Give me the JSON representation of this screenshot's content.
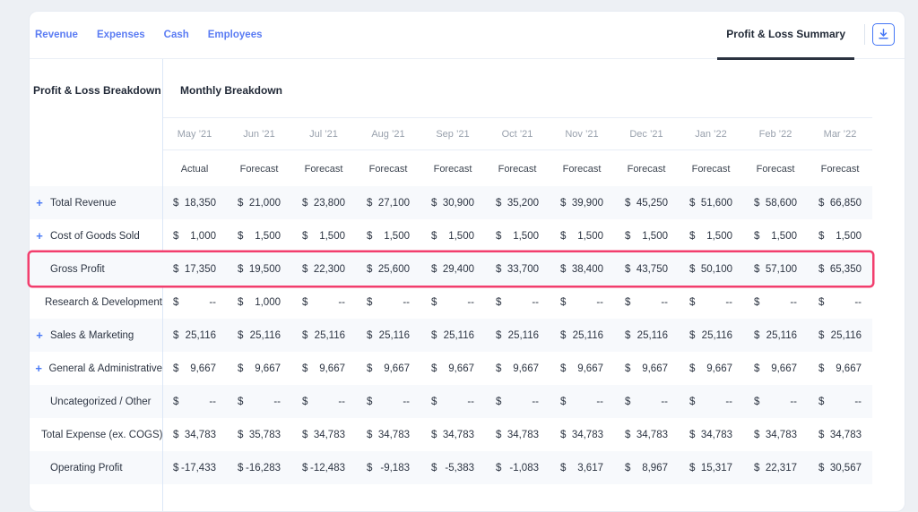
{
  "colors": {
    "page_background": "#edf0f4",
    "accent_blue": "#4b7bf5",
    "tab_blue": "#5b7cf3",
    "highlight_pink": "#f23e6d",
    "row_stripe": "#f7f9fc",
    "active_tab_underline": "#2b3240"
  },
  "tabs": [
    {
      "label": "Revenue"
    },
    {
      "label": "Expenses"
    },
    {
      "label": "Cash"
    },
    {
      "label": "Employees"
    }
  ],
  "active_view": {
    "label": "Profit & Loss Summary"
  },
  "panel": {
    "left_header": "Profit & Loss Breakdown",
    "main_header": "Monthly Breakdown"
  },
  "table": {
    "currency": "$",
    "expand_glyph": "+",
    "columns": [
      {
        "month": "May ’21",
        "period": "Actual"
      },
      {
        "month": "Jun ’21",
        "period": "Forecast"
      },
      {
        "month": "Jul ’21",
        "period": "Forecast"
      },
      {
        "month": "Aug ’21",
        "period": "Forecast"
      },
      {
        "month": "Sep ’21",
        "period": "Forecast"
      },
      {
        "month": "Oct ’21",
        "period": "Forecast"
      },
      {
        "month": "Nov ’21",
        "period": "Forecast"
      },
      {
        "month": "Dec ’21",
        "period": "Forecast"
      },
      {
        "month": "Jan ’22",
        "period": "Forecast"
      },
      {
        "month": "Feb ’22",
        "period": "Forecast"
      },
      {
        "month": "Mar ’22",
        "period": "Forecast"
      }
    ],
    "rows": [
      {
        "label": "Total Revenue",
        "expandable": true,
        "highlighted": false,
        "striped": true,
        "values": [
          "18,350",
          "21,000",
          "23,800",
          "27,100",
          "30,900",
          "35,200",
          "39,900",
          "45,250",
          "51,600",
          "58,600",
          "66,850"
        ]
      },
      {
        "label": "Cost of Goods Sold",
        "expandable": true,
        "highlighted": false,
        "striped": false,
        "values": [
          "1,000",
          "1,500",
          "1,500",
          "1,500",
          "1,500",
          "1,500",
          "1,500",
          "1,500",
          "1,500",
          "1,500",
          "1,500"
        ]
      },
      {
        "label": "Gross Profit",
        "expandable": false,
        "highlighted": true,
        "striped": true,
        "values": [
          "17,350",
          "19,500",
          "22,300",
          "25,600",
          "29,400",
          "33,700",
          "38,400",
          "43,750",
          "50,100",
          "57,100",
          "65,350"
        ]
      },
      {
        "label": "Research & Development",
        "expandable": false,
        "highlighted": false,
        "striped": false,
        "values": [
          "--",
          "1,000",
          "--",
          "--",
          "--",
          "--",
          "--",
          "--",
          "--",
          "--",
          "--"
        ]
      },
      {
        "label": "Sales & Marketing",
        "expandable": true,
        "highlighted": false,
        "striped": true,
        "values": [
          "25,116",
          "25,116",
          "25,116",
          "25,116",
          "25,116",
          "25,116",
          "25,116",
          "25,116",
          "25,116",
          "25,116",
          "25,116"
        ]
      },
      {
        "label": "General & Administrative",
        "expandable": true,
        "highlighted": false,
        "striped": false,
        "values": [
          "9,667",
          "9,667",
          "9,667",
          "9,667",
          "9,667",
          "9,667",
          "9,667",
          "9,667",
          "9,667",
          "9,667",
          "9,667"
        ]
      },
      {
        "label": "Uncategorized / Other",
        "expandable": false,
        "highlighted": false,
        "striped": true,
        "values": [
          "--",
          "--",
          "--",
          "--",
          "--",
          "--",
          "--",
          "--",
          "--",
          "--",
          "--"
        ]
      },
      {
        "label": "Total Expense (ex. COGS)",
        "expandable": false,
        "highlighted": false,
        "striped": false,
        "values": [
          "34,783",
          "35,783",
          "34,783",
          "34,783",
          "34,783",
          "34,783",
          "34,783",
          "34,783",
          "34,783",
          "34,783",
          "34,783"
        ]
      },
      {
        "label": "Operating Profit",
        "expandable": false,
        "highlighted": false,
        "striped": true,
        "values": [
          "-17,433",
          "-16,283",
          "-12,483",
          "-9,183",
          "-5,383",
          "-1,083",
          "3,617",
          "8,967",
          "15,317",
          "22,317",
          "30,567"
        ]
      }
    ]
  }
}
